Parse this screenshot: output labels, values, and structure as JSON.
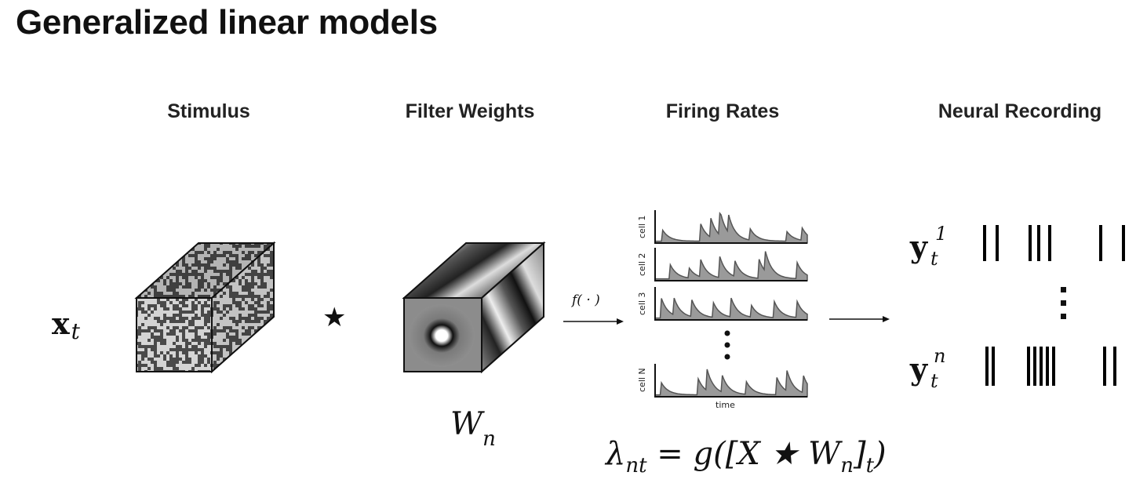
{
  "title": "Generalized linear models",
  "columns": {
    "stimulus": "Stimulus",
    "filter_weights": "Filter Weights",
    "firing_rates": "Firing Rates",
    "neural_recording": "Neural Recording"
  },
  "math": {
    "x_bold": "x",
    "x_sub": "t",
    "convolution": "★",
    "w_main": "W",
    "w_sub": "n",
    "nonlinearity": "f( · )",
    "y_bold": "y",
    "y1_sup": "1",
    "y1_sub": "t",
    "yn_sup": "n",
    "yn_sub": "t",
    "formula": "λnt = g([X ★ Wn]t)"
  },
  "firing_rates_panel": {
    "cell_labels": [
      "cell 1",
      "cell 2",
      "cell 3",
      "cell N"
    ],
    "x_axis_label": "time"
  },
  "colors": {
    "trace_fill": "#9a9a9a",
    "trace_stroke": "#555555",
    "spike": "#000000"
  }
}
